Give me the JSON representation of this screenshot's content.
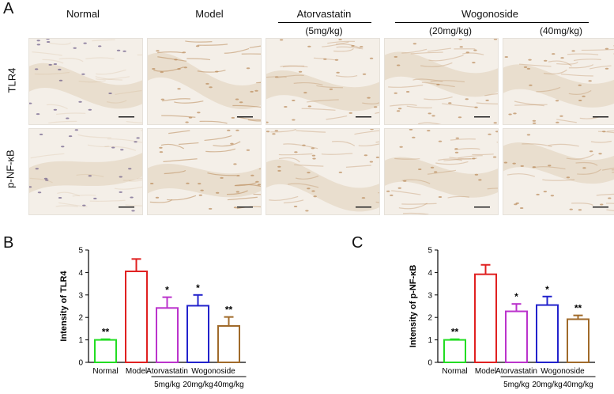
{
  "panel_labels": {
    "a": "A",
    "b": "B",
    "c": "C"
  },
  "micrographs": {
    "column_headers": [
      "Normal",
      "Model",
      "Atorvastatin",
      "Wogonoside"
    ],
    "doses": [
      "(5mg/kg)",
      "(20mg/kg)",
      "(40mg/kg)"
    ],
    "row_labels": [
      "TLR4",
      "p-NF-κB"
    ],
    "stain_colors": {
      "background": "#f4efe8",
      "tissue": "#e8dccb",
      "brown": "#b98a5a",
      "nuclei": "#6a5a88"
    }
  },
  "colors": {
    "Normal": "#22dd22",
    "Model": "#e02020",
    "Atorvastatin": "#bb33cc",
    "Wogonoside20": "#2222cc",
    "Wogonoside40": "#a06a2a"
  },
  "chart_data": [
    {
      "type": "bar",
      "ylabel": "Intensity of TLR4",
      "ylim": [
        0,
        5
      ],
      "yticks": [
        "0",
        "1",
        "2",
        "3",
        "4",
        "5"
      ],
      "categories": [
        "Normal",
        "Model",
        "5mg/kg",
        "20mg/kg",
        "40mg/kg"
      ],
      "group_labels": [
        "Atorvastatin",
        "Wogonoside"
      ],
      "values": [
        1.0,
        4.05,
        2.42,
        2.52,
        1.62
      ],
      "errors": [
        0.03,
        0.55,
        0.48,
        0.48,
        0.4
      ],
      "significance": [
        "**",
        "",
        "*",
        "*",
        "**"
      ]
    },
    {
      "type": "bar",
      "ylabel": "Intensity of p-NF-κB",
      "ylim": [
        0,
        5
      ],
      "yticks": [
        "0",
        "1",
        "2",
        "3",
        "4",
        "5"
      ],
      "categories": [
        "Normal",
        "Model",
        "5mg/kg",
        "20mg/kg",
        "40mg/kg"
      ],
      "group_labels": [
        "Atorvastatin",
        "Wogonoside"
      ],
      "values": [
        1.0,
        3.92,
        2.27,
        2.55,
        1.92
      ],
      "errors": [
        0.03,
        0.42,
        0.33,
        0.38,
        0.17
      ],
      "significance": [
        "**",
        "",
        "*",
        "*",
        "**"
      ]
    }
  ]
}
